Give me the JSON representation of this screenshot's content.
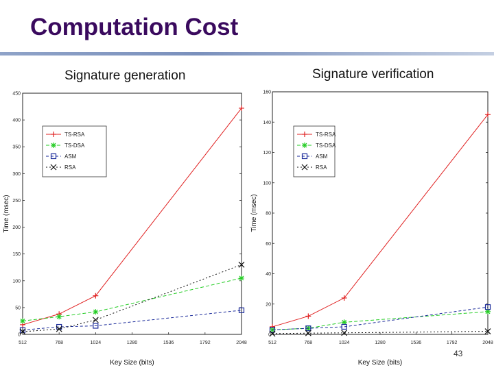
{
  "slide": {
    "title": "Computation Cost",
    "page_number": "43"
  },
  "colors": {
    "title": "#3a0a5e",
    "ts_rsa": "#e02020",
    "ts_dsa": "#22cc22",
    "asm": "#1a2a9a",
    "rsa": "#111111"
  },
  "chart_data": [
    {
      "type": "line",
      "title": "Signature generation",
      "xlabel": "Key Size (bits)",
      "ylabel": "Time (msec)",
      "xlim": [
        512,
        2048
      ],
      "ylim": [
        0,
        450
      ],
      "xticks": [
        512,
        768,
        1024,
        1280,
        1536,
        1792,
        2048
      ],
      "xtick_labels": [
        "512",
        "768",
        "1024",
        "1280",
        "1536",
        "1792",
        "2048"
      ],
      "yticks": [
        0,
        50,
        100,
        150,
        200,
        250,
        300,
        350,
        400,
        450
      ],
      "ytick_labels": [
        "0",
        "50",
        "100",
        "150",
        "200",
        "250",
        "300",
        "350",
        "400",
        "450"
      ],
      "legend_position": "upper-left",
      "x": [
        512,
        768,
        1024,
        2048
      ],
      "series": [
        {
          "name": "TS-RSA",
          "values": [
            18,
            38,
            72,
            422
          ]
        },
        {
          "name": "TS-DSA",
          "values": [
            25,
            33,
            42,
            105
          ]
        },
        {
          "name": "ASM",
          "values": [
            8,
            14,
            16,
            45
          ]
        },
        {
          "name": "RSA",
          "values": [
            5,
            10,
            27,
            130
          ]
        }
      ]
    },
    {
      "type": "line",
      "title": "Signature verification",
      "xlabel": "Key Size (bits)",
      "ylabel": "Time (msec)",
      "xlim": [
        512,
        2048
      ],
      "ylim": [
        0,
        160
      ],
      "xticks": [
        512,
        768,
        1024,
        1280,
        1536,
        1792,
        2048
      ],
      "xtick_labels": [
        "512",
        "768",
        "1024",
        "1280",
        "1536",
        "1792",
        "2048"
      ],
      "yticks": [
        0,
        20,
        40,
        60,
        80,
        100,
        120,
        140,
        160
      ],
      "ytick_labels": [
        "0",
        "20",
        "40",
        "60",
        "80",
        "100",
        "120",
        "140",
        "160"
      ],
      "legend_position": "upper-left",
      "x": [
        512,
        768,
        1024,
        2048
      ],
      "series": [
        {
          "name": "TS-RSA",
          "values": [
            5,
            12,
            24,
            145
          ]
        },
        {
          "name": "TS-DSA",
          "values": [
            3,
            4,
            8,
            15
          ]
        },
        {
          "name": "ASM",
          "values": [
            3,
            4,
            5,
            18
          ]
        },
        {
          "name": "RSA",
          "values": [
            0.5,
            0.8,
            1,
            2
          ]
        }
      ]
    }
  ]
}
